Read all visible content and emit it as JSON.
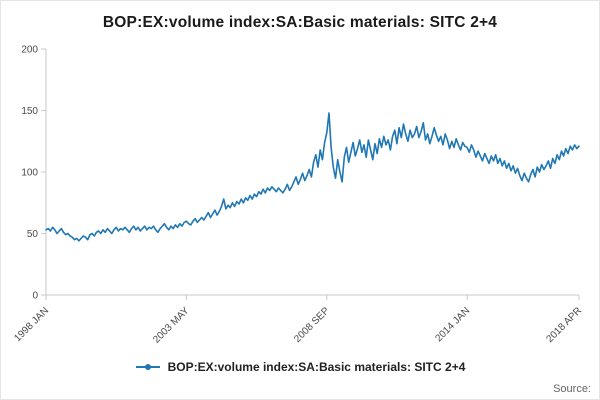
{
  "title": "BOP:EX:volume index:SA:Basic materials: SITC 2+4",
  "legend": {
    "label": "BOP:EX:volume index:SA:Basic materials: SITC 2+4"
  },
  "source_label": "Source:",
  "colors": {
    "line": "#1f77b4",
    "axis": "#c9c9c9",
    "tick_text": "#4a4a4a"
  },
  "chart_data": {
    "type": "line",
    "title": "BOP:EX:volume index:SA:Basic materials: SITC 2+4",
    "xlabel": "",
    "ylabel": "",
    "frequency": "monthly",
    "x_tick_labels": [
      "1998 JAN",
      "2003 MAY",
      "2008 SEP",
      "2014 JAN",
      "2018 APR"
    ],
    "x_tick_positions": [
      0,
      64,
      128,
      192,
      243
    ],
    "y_ticks": [
      0,
      50,
      100,
      150,
      200
    ],
    "ylim": [
      0,
      200
    ],
    "legend_position": "bottom",
    "grid": false,
    "values": [
      53,
      54,
      52,
      55,
      53,
      50,
      52,
      54,
      51,
      49,
      50,
      48,
      47,
      45,
      46,
      44,
      46,
      48,
      47,
      45,
      49,
      50,
      48,
      51,
      52,
      50,
      53,
      51,
      54,
      52,
      50,
      53,
      55,
      52,
      54,
      53,
      55,
      53,
      51,
      54,
      56,
      53,
      55,
      52,
      54,
      56,
      53,
      55,
      54,
      56,
      53,
      51,
      54,
      56,
      58,
      55,
      53,
      56,
      54,
      57,
      55,
      58,
      56,
      59,
      60,
      58,
      57,
      60,
      62,
      59,
      61,
      63,
      61,
      64,
      67,
      63,
      66,
      69,
      65,
      68,
      72,
      78,
      70,
      73,
      71,
      75,
      72,
      76,
      74,
      78,
      75,
      79,
      77,
      81,
      78,
      82,
      80,
      84,
      82,
      86,
      83,
      87,
      85,
      88,
      86,
      84,
      87,
      85,
      83,
      86,
      90,
      85,
      88,
      92,
      96,
      90,
      94,
      99,
      93,
      97,
      102,
      96,
      108,
      114,
      104,
      118,
      110,
      124,
      132,
      148,
      120,
      104,
      95,
      110,
      100,
      92,
      112,
      120,
      108,
      116,
      124,
      113,
      119,
      126,
      116,
      122,
      112,
      126,
      118,
      110,
      123,
      115,
      127,
      120,
      129,
      122,
      126,
      118,
      129,
      134,
      123,
      136,
      128,
      139,
      131,
      125,
      134,
      128,
      131,
      137,
      128,
      133,
      140,
      126,
      131,
      123,
      129,
      136,
      130,
      125,
      129,
      122,
      131,
      126,
      119,
      125,
      120,
      127,
      122,
      118,
      124,
      121,
      120,
      116,
      122,
      118,
      112,
      117,
      113,
      109,
      115,
      111,
      107,
      113,
      109,
      114,
      107,
      111,
      105,
      109,
      103,
      107,
      101,
      105,
      99,
      103,
      97,
      93,
      99,
      95,
      92,
      98,
      102,
      96,
      104,
      100,
      106,
      102,
      105,
      109,
      103,
      111,
      107,
      114,
      110,
      117,
      113,
      119,
      115,
      121,
      118,
      122,
      119,
      121
    ]
  }
}
